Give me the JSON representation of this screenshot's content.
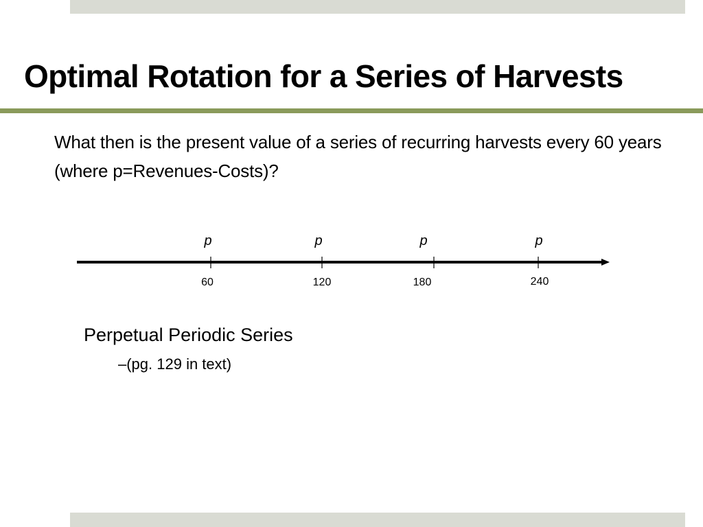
{
  "slide": {
    "title": "Optimal Rotation for a Series of Harvests",
    "question": "What then is the present value of a series of recurring harvests every 60 years (where p=Revenues-Costs)?",
    "colors": {
      "band": "#d9dbd3",
      "title_rule": "#8a9a5b",
      "text": "#000000"
    }
  },
  "timeline": {
    "payment_label": "p",
    "ticks": [
      "60",
      "120",
      "180",
      "240"
    ]
  },
  "bullets": {
    "main": "Perpetual Periodic Series",
    "sub": "–(pg. 129 in text)"
  }
}
